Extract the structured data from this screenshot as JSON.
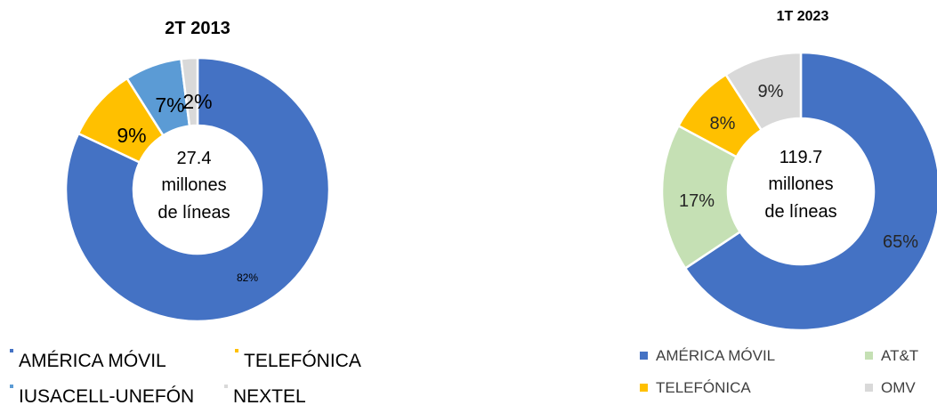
{
  "chart_data": [
    {
      "type": "pie",
      "variant": "donut",
      "title": "2T 2013",
      "center_text": [
        "27.4",
        "millones",
        "de líneas"
      ],
      "series": [
        {
          "name": "AMÉRICA MÓVIL",
          "value": 82,
          "label": "82%",
          "color": "#4472C4"
        },
        {
          "name": "TELEFÓNICA",
          "value": 9,
          "label": "9%",
          "color": "#FFC000"
        },
        {
          "name": "IUSACELL-UNEFÓN",
          "value": 7,
          "label": "7%",
          "color": "#5B9BD5"
        },
        {
          "name": "NEXTEL",
          "value": 2,
          "label": "2%",
          "color": "#D9D9D9"
        }
      ],
      "legend": {
        "position": "bottom-left",
        "rows": [
          [
            "AMÉRICA MÓVIL",
            "TELEFÓNICA"
          ],
          [
            "IUSACELL-UNEFÓN",
            "NEXTEL"
          ]
        ]
      }
    },
    {
      "type": "pie",
      "variant": "donut",
      "title": "1T 2023",
      "center_text": [
        "119.7",
        "millones",
        "de líneas"
      ],
      "series": [
        {
          "name": "AMÉRICA MÓVIL",
          "value": 65,
          "label": "65%",
          "color": "#4472C4"
        },
        {
          "name": "AT&T",
          "value": 17,
          "label": "17%",
          "color": "#C5E0B4"
        },
        {
          "name": "TELEFÓNICA",
          "value": 8,
          "label": "8%",
          "color": "#FFC000"
        },
        {
          "name": "OMV",
          "value": 9,
          "label": "9%",
          "color": "#D9D9D9"
        }
      ],
      "legend": {
        "position": "bottom-right",
        "rows": [
          [
            "AMÉRICA MÓVIL",
            "AT&T"
          ],
          [
            "TELEFÓNICA",
            "OMV"
          ]
        ]
      }
    }
  ]
}
